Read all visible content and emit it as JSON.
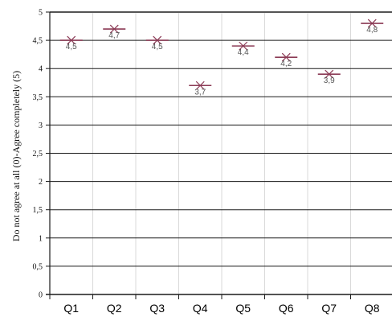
{
  "chart_data": {
    "type": "scatter",
    "categories": [
      "Q1",
      "Q2",
      "Q3",
      "Q4",
      "Q5",
      "Q6",
      "Q7",
      "Q8"
    ],
    "values": [
      4.5,
      4.7,
      4.5,
      3.7,
      4.4,
      4.2,
      3.9,
      4.8
    ],
    "data_labels": [
      "4,5",
      "4,7",
      "4,5",
      "3,7",
      "4,4",
      "4,2",
      "3,9",
      "4,8"
    ],
    "ylabel": "Do not agree at all (0)-Agree completely (5)",
    "xlabel": "",
    "title": "",
    "ylim": [
      0,
      5
    ],
    "yticks": [
      0,
      0.5,
      1,
      1.5,
      2,
      2.5,
      3,
      3.5,
      4,
      4.5,
      5
    ],
    "ytick_labels": [
      "0",
      "0,5",
      "1",
      "1,5",
      "2",
      "2,5",
      "3",
      "3,5",
      "4",
      "4,5",
      "5"
    ],
    "marker": "x-with-dash",
    "marker_color": "#8b3a55",
    "grid": true,
    "legend": "none"
  }
}
